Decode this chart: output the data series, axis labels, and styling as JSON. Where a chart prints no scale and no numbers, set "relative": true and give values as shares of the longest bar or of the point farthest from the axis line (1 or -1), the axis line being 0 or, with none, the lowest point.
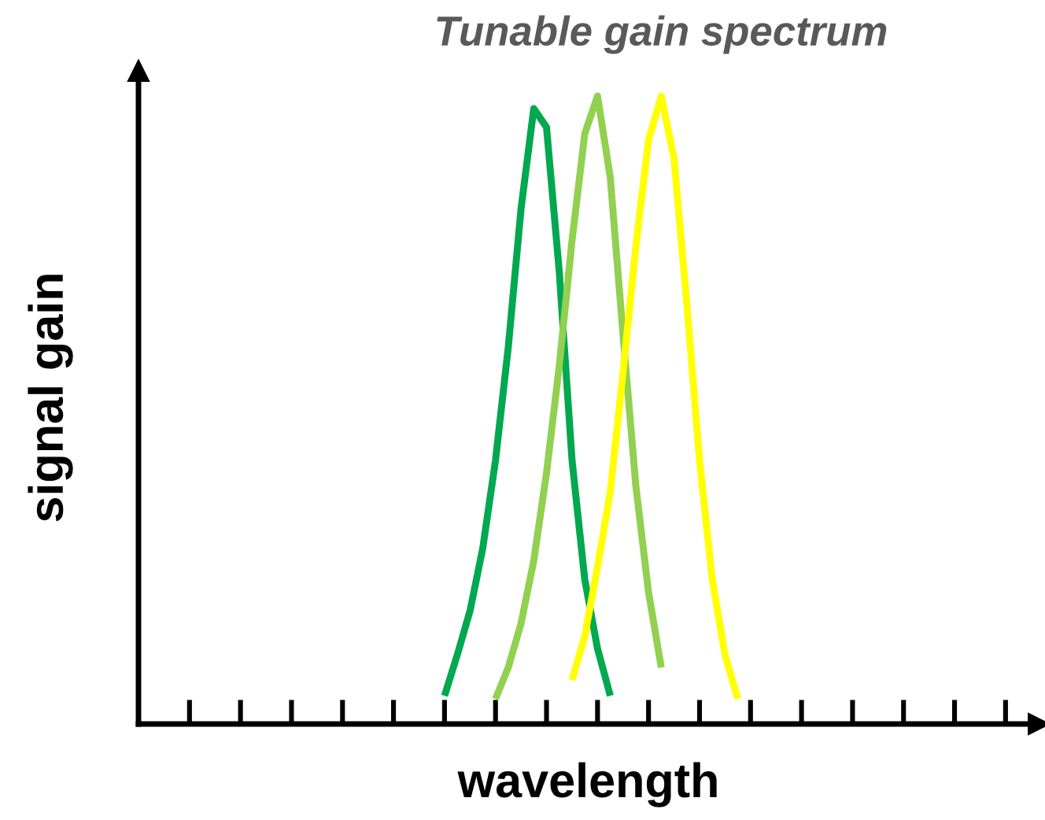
{
  "chart_data": {
    "type": "line",
    "title": "Tunable gain spectrum",
    "xlabel": "wavelength",
    "ylabel": "signal gain",
    "relative": true,
    "categories": [
      null,
      null,
      null,
      null,
      null,
      null,
      null,
      null,
      null,
      null,
      null,
      null,
      null,
      null,
      null,
      null,
      null,
      null,
      null,
      null,
      null,
      null,
      null,
      null,
      null,
      null,
      null,
      null,
      null,
      null,
      null,
      null,
      null,
      null,
      null,
      null,
      null,
      null,
      null,
      null,
      null,
      null,
      null,
      null,
      null,
      null,
      null,
      null,
      null,
      null,
      null,
      null,
      null,
      null,
      null,
      null,
      null,
      null,
      null,
      null,
      null,
      null,
      null,
      null,
      null,
      null,
      null,
      null,
      null,
      null,
      null
    ],
    "tick_labels": false,
    "grid": false,
    "marker": "none",
    "line_style": "solid",
    "series": [
      {
        "color": "#00a84f",
        "values": [
          null,
          null,
          null,
          null,
          null,
          null,
          null,
          null,
          null,
          null,
          null,
          null,
          null,
          null,
          null,
          null,
          null,
          null,
          null,
          null,
          null,
          null,
          null,
          null,
          0.045,
          0.11,
          0.18,
          0.28,
          0.42,
          0.6,
          0.82,
          0.98,
          0.95,
          0.72,
          0.42,
          0.23,
          0.12,
          0.045,
          null,
          null,
          null,
          null,
          null,
          null,
          null,
          null,
          null,
          null,
          null,
          null,
          null,
          null,
          null,
          null,
          null,
          null,
          null,
          null,
          null,
          null,
          null,
          null,
          null,
          null,
          null,
          null,
          null,
          null,
          null,
          null,
          null
        ]
      },
      {
        "color": "#92d050",
        "values": [
          null,
          null,
          null,
          null,
          null,
          null,
          null,
          null,
          null,
          null,
          null,
          null,
          null,
          null,
          null,
          null,
          null,
          null,
          null,
          null,
          null,
          null,
          null,
          null,
          null,
          null,
          null,
          null,
          0.04,
          0.09,
          0.16,
          0.26,
          0.4,
          0.57,
          0.77,
          0.94,
          1.0,
          0.87,
          0.62,
          0.38,
          0.21,
          0.09,
          null,
          null,
          null,
          null,
          null,
          null,
          null,
          null,
          null,
          null,
          null,
          null,
          null,
          null,
          null,
          null,
          null,
          null,
          null,
          null,
          null,
          null,
          null,
          null,
          null,
          null,
          null,
          null,
          null
        ]
      },
      {
        "color": "#ffff00",
        "values": [
          null,
          null,
          null,
          null,
          null,
          null,
          null,
          null,
          null,
          null,
          null,
          null,
          null,
          null,
          null,
          null,
          null,
          null,
          null,
          null,
          null,
          null,
          null,
          null,
          null,
          null,
          null,
          null,
          null,
          null,
          null,
          null,
          null,
          null,
          0.07,
          0.14,
          0.25,
          0.37,
          0.56,
          0.76,
          0.93,
          1.0,
          0.9,
          0.67,
          0.42,
          0.23,
          0.11,
          0.04,
          null,
          null,
          null,
          null,
          null,
          null,
          null,
          null,
          null,
          null,
          null,
          null,
          null,
          null,
          null,
          null,
          null,
          null,
          null,
          null,
          null,
          null,
          null
        ]
      }
    ]
  }
}
